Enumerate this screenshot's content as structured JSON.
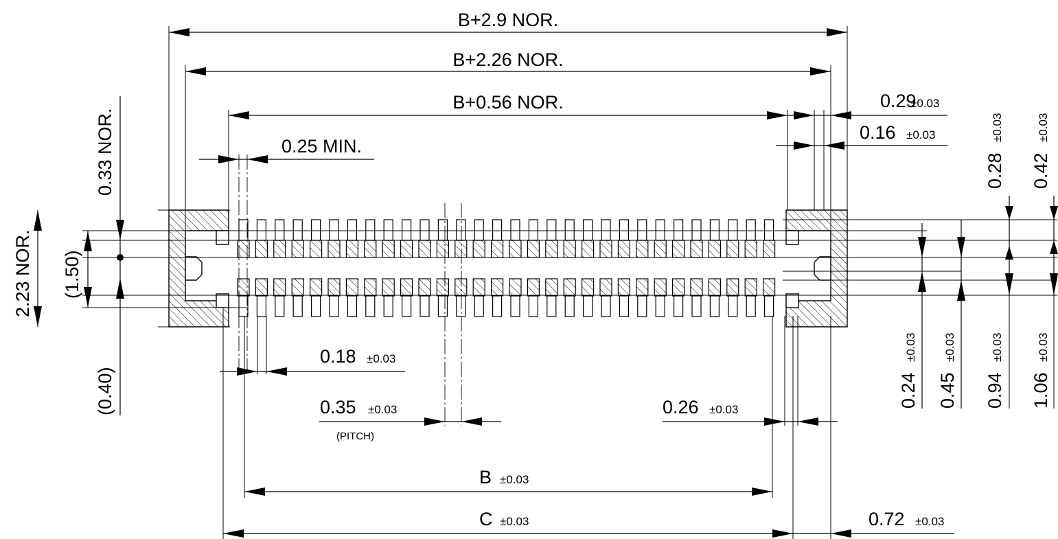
{
  "dimensions": {
    "overall_width": "B+2.9 NOR.",
    "mid_width": "B+2.26 NOR.",
    "inner_width": "B+0.56 NOR.",
    "min_gap": "0.25 MIN.",
    "left_height": "0.33 NOR.",
    "body_height": "2.23 NOR.",
    "pad_span": "(1.50)",
    "lower_ref": "(0.40)",
    "pad_width": "0.18",
    "pitch": "0.35",
    "pitch_note": "(PITCH)",
    "end_pad_width": "0.26",
    "b_length": "B",
    "c_length": "C",
    "end_offset": "0.72",
    "top_r1": "0.29",
    "top_r2": "0.16",
    "r_v1": "0.28",
    "r_v2": "0.42",
    "r_v3": "0.24",
    "r_v4": "0.45",
    "r_v5": "0.94",
    "r_v6": "1.06"
  },
  "tolerance": "±0.03"
}
